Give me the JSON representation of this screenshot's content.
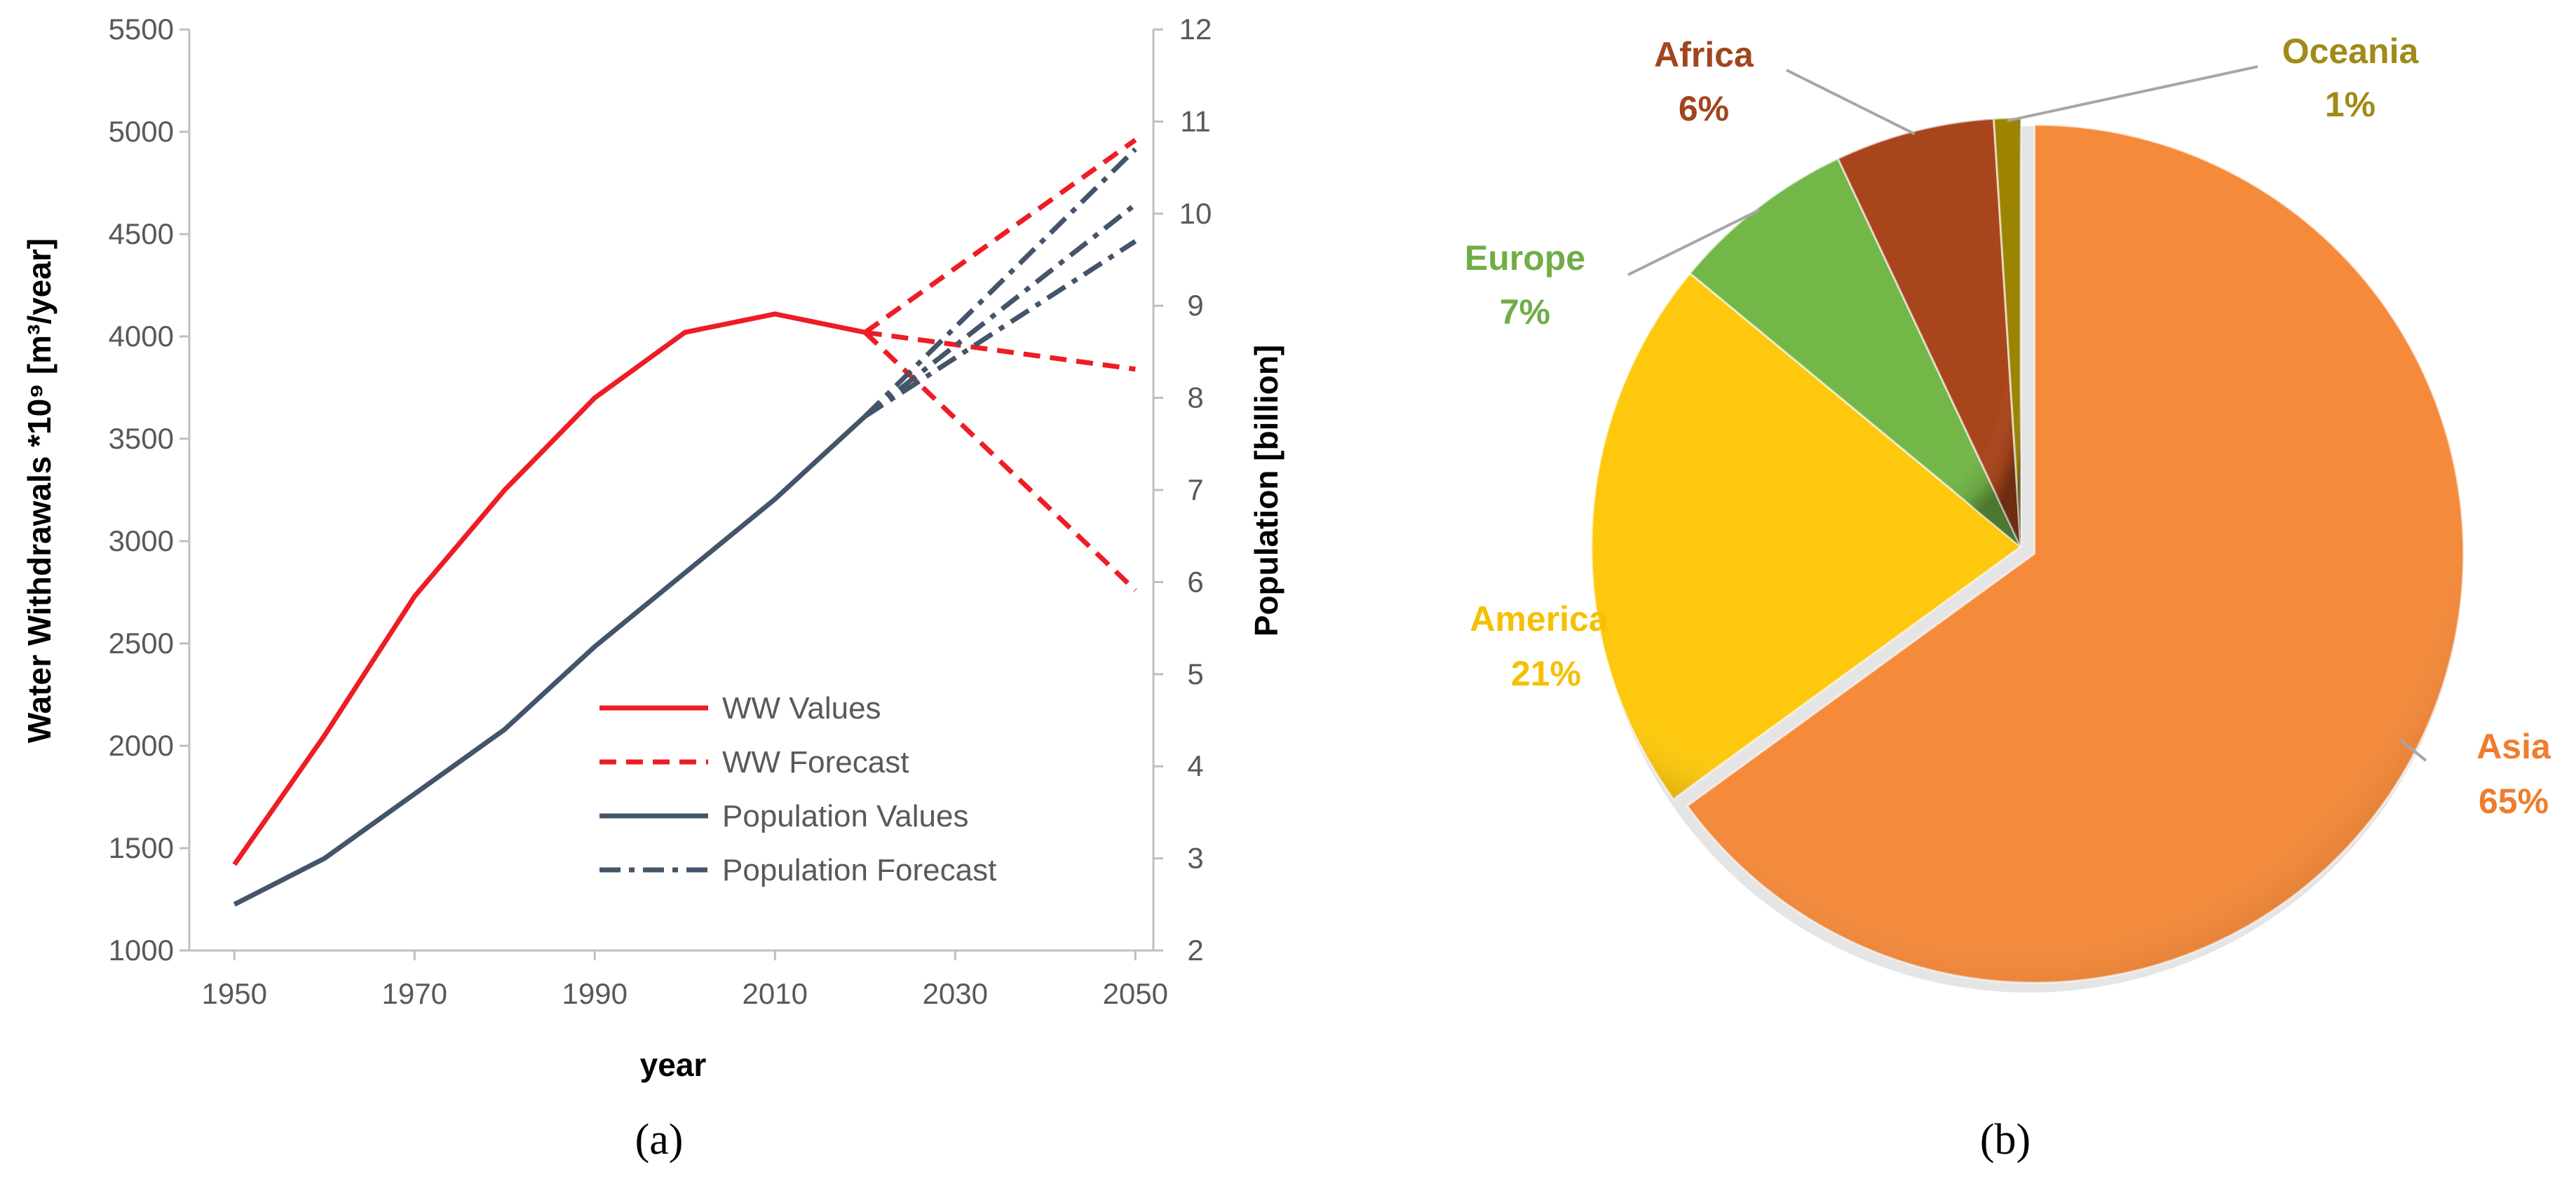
{
  "chart_data": [
    {
      "type": "line",
      "panel": "(a)",
      "xlabel": "year",
      "ylabel": "Water Withdrawals  *10⁹ [m³/year]",
      "y2label": "Population [billion]",
      "xlim": [
        1945,
        2052
      ],
      "ylim": [
        1000,
        5500
      ],
      "y2lim": [
        2,
        12
      ],
      "x_ticks": [
        "1950",
        "1970",
        "1990",
        "2010",
        "2030",
        "2050"
      ],
      "y_ticks": [
        "1000",
        "1500",
        "2000",
        "2500",
        "3000",
        "3500",
        "4000",
        "4500",
        "5000",
        "5500"
      ],
      "y2_ticks": [
        "2",
        "3",
        "4",
        "5",
        "6",
        "7",
        "8",
        "9",
        "10",
        "11",
        "12"
      ],
      "legend": {
        "position": "lower-right",
        "entries": [
          "WW Values",
          "WW Forecast",
          "Population Values",
          "Population Forecast"
        ]
      },
      "series": [
        {
          "name": "WW Values",
          "axis": "left",
          "style": "solid",
          "color": "#ee1c25",
          "x": [
            1950,
            1960,
            1970,
            1980,
            1990,
            2000,
            2010,
            2020
          ],
          "y": [
            1420,
            2050,
            2730,
            3250,
            3700,
            4020,
            4110,
            4020
          ]
        },
        {
          "name": "WW Forecast",
          "axis": "left",
          "style": "dashed",
          "color": "#ee1c25",
          "lines": [
            {
              "x": [
                2020,
                2050
              ],
              "y": [
                4020,
                4960
              ]
            },
            {
              "x": [
                2020,
                2050
              ],
              "y": [
                4020,
                3840
              ]
            },
            {
              "x": [
                2020,
                2050
              ],
              "y": [
                4020,
                2760
              ]
            }
          ]
        },
        {
          "name": "Population Values",
          "axis": "right",
          "style": "solid",
          "color": "#44546a",
          "x": [
            1950,
            1960,
            1970,
            1980,
            1990,
            2000,
            2010,
            2020
          ],
          "y": [
            2.5,
            3.0,
            3.7,
            4.4,
            5.3,
            6.1,
            6.9,
            7.8
          ]
        },
        {
          "name": "Population Forecast",
          "axis": "right",
          "style": "dash-dot",
          "color": "#44546a",
          "lines": [
            {
              "x": [
                2020,
                2050
              ],
              "y": [
                7.8,
                10.7
              ]
            },
            {
              "x": [
                2020,
                2050
              ],
              "y": [
                7.8,
                10.1
              ]
            },
            {
              "x": [
                2020,
                2050
              ],
              "y": [
                7.8,
                9.7
              ]
            }
          ]
        }
      ]
    },
    {
      "type": "pie",
      "panel": "(b)",
      "slices": [
        {
          "name": "Asia",
          "value": 65,
          "label": "65%",
          "color": "#f58a3a",
          "text_color": "#f07c2c"
        },
        {
          "name": "America",
          "value": 21,
          "label": "21%",
          "color": "#fdc80e",
          "text_color": "#f5c000"
        },
        {
          "name": "Europe",
          "value": 7,
          "label": "7%",
          "color": "#74b749",
          "text_color": "#70ad47"
        },
        {
          "name": "Africa",
          "value": 6,
          "label": "6%",
          "color": "#a9451c",
          "text_color": "#a0461e"
        },
        {
          "name": "Oceania",
          "value": 1,
          "label": "1%",
          "color": "#9c8400",
          "text_color": "#a08a18"
        }
      ]
    }
  ]
}
